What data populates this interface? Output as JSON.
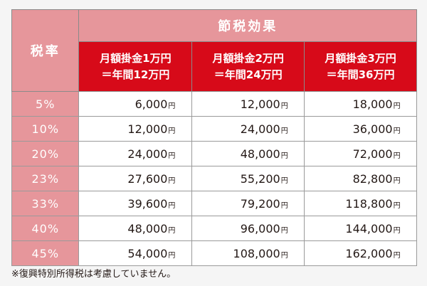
{
  "table": {
    "header": {
      "rate_label": "税率",
      "group_label": "節税効果",
      "columns": [
        {
          "line1": "月額掛金1万円",
          "line2": "＝年間12万円"
        },
        {
          "line1": "月額掛金2万円",
          "line2": "＝年間24万円"
        },
        {
          "line1": "月額掛金3万円",
          "line2": "＝年間36万円"
        }
      ]
    },
    "unit": "円",
    "rows": [
      {
        "rate": "5%",
        "values": [
          "6,000",
          "12,000",
          "18,000"
        ]
      },
      {
        "rate": "10%",
        "values": [
          "12,000",
          "24,000",
          "36,000"
        ]
      },
      {
        "rate": "20%",
        "values": [
          "24,000",
          "48,000",
          "72,000"
        ]
      },
      {
        "rate": "23%",
        "values": [
          "27,600",
          "55,200",
          "82,800"
        ]
      },
      {
        "rate": "33%",
        "values": [
          "39,600",
          "79,200",
          "118,800"
        ]
      },
      {
        "rate": "40%",
        "values": [
          "48,000",
          "96,000",
          "144,000"
        ]
      },
      {
        "rate": "45%",
        "values": [
          "54,000",
          "108,000",
          "162,000"
        ]
      }
    ]
  },
  "note": "※復興特別所得税は考慮していません。",
  "colors": {
    "header_pink": "#e6969b",
    "header_red": "#d70a19",
    "text": "#231815",
    "border": "#8a8a8a"
  }
}
